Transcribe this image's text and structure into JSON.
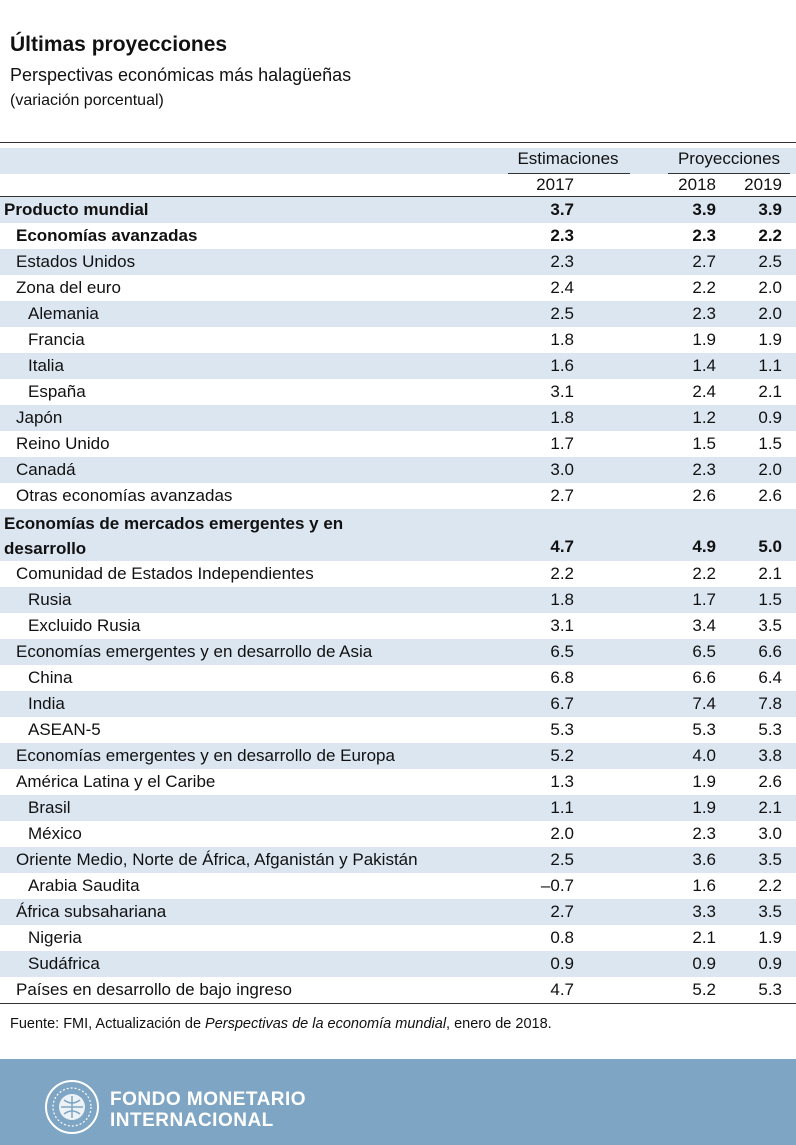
{
  "header": {
    "title": "Últimas proyecciones",
    "subtitle": "Perspectivas económicas más halagüeñas",
    "unit": "(variación porcentual)"
  },
  "table": {
    "group_headers": {
      "estimates": "Estimaciones",
      "projections": "Proyecciones"
    },
    "years": [
      "2017",
      "2018",
      "2019"
    ],
    "rows": [
      {
        "label": "Producto mundial",
        "values": [
          "3.7",
          "3.9",
          "3.9"
        ]
      },
      {
        "label": "Economías avanzadas",
        "values": [
          "2.3",
          "2.3",
          "2.2"
        ]
      },
      {
        "label": "Estados Unidos",
        "values": [
          "2.3",
          "2.7",
          "2.5"
        ]
      },
      {
        "label": "Zona del euro",
        "values": [
          "2.4",
          "2.2",
          "2.0"
        ]
      },
      {
        "label": "Alemania",
        "values": [
          "2.5",
          "2.3",
          "2.0"
        ]
      },
      {
        "label": "Francia",
        "values": [
          "1.8",
          "1.9",
          "1.9"
        ]
      },
      {
        "label": "Italia",
        "values": [
          "1.6",
          "1.4",
          "1.1"
        ]
      },
      {
        "label": "España",
        "values": [
          "3.1",
          "2.4",
          "2.1"
        ]
      },
      {
        "label": "Japón",
        "values": [
          "1.8",
          "1.2",
          "0.9"
        ]
      },
      {
        "label": "Reino Unido",
        "values": [
          "1.7",
          "1.5",
          "1.5"
        ]
      },
      {
        "label": "Canadá",
        "values": [
          "3.0",
          "2.3",
          "2.0"
        ]
      },
      {
        "label": "Otras economías avanzadas",
        "values": [
          "2.7",
          "2.6",
          "2.6"
        ]
      },
      {
        "label": "Economías de mercados emergentes y en desarrollo",
        "values": [
          "4.7",
          "4.9",
          "5.0"
        ]
      },
      {
        "label": "Comunidad de Estados Independientes",
        "values": [
          "2.2",
          "2.2",
          "2.1"
        ]
      },
      {
        "label": "Rusia",
        "values": [
          "1.8",
          "1.7",
          "1.5"
        ]
      },
      {
        "label": "Excluido Rusia",
        "values": [
          "3.1",
          "3.4",
          "3.5"
        ]
      },
      {
        "label": "Economías emergentes y en desarrollo de Asia",
        "values": [
          "6.5",
          "6.5",
          "6.6"
        ]
      },
      {
        "label": "China",
        "values": [
          "6.8",
          "6.6",
          "6.4"
        ]
      },
      {
        "label": "India",
        "values": [
          "6.7",
          "7.4",
          "7.8"
        ]
      },
      {
        "label": "ASEAN-5",
        "values": [
          "5.3",
          "5.3",
          "5.3"
        ]
      },
      {
        "label": "Economías emergentes y en desarrollo de Europa",
        "values": [
          "5.2",
          "4.0",
          "3.8"
        ]
      },
      {
        "label": "América Latina y el Caribe",
        "values": [
          "1.3",
          "1.9",
          "2.6"
        ]
      },
      {
        "label": "Brasil",
        "values": [
          "1.1",
          "1.9",
          "2.1"
        ]
      },
      {
        "label": "México",
        "values": [
          "2.0",
          "2.3",
          "3.0"
        ]
      },
      {
        "label": "Oriente Medio, Norte de África, Afganistán y Pakistán",
        "values": [
          "2.5",
          "3.6",
          "3.5"
        ]
      },
      {
        "label": "Arabia Saudita",
        "values": [
          "–0.7",
          "1.6",
          "2.2"
        ]
      },
      {
        "label": "África subsahariana",
        "values": [
          "2.7",
          "3.3",
          "3.5"
        ]
      },
      {
        "label": "Nigeria",
        "values": [
          "0.8",
          "2.1",
          "1.9"
        ]
      },
      {
        "label": "Sudáfrica",
        "values": [
          "0.9",
          "0.9",
          "0.9"
        ]
      },
      {
        "label": "Países en desarrollo de bajo ingreso",
        "values": [
          "4.7",
          "5.2",
          "5.3"
        ]
      }
    ]
  },
  "source": {
    "prefix": "Fuente: FMI, Actualización de ",
    "publication": "Perspectivas de la economía mundial",
    "suffix": ", enero de 2018."
  },
  "footer": {
    "brand_line1": "FONDO MONETARIO",
    "brand_line2": "INTERNACIONAL",
    "logo_icon": "imf-seal-icon",
    "band_color": "#7ea6c4",
    "row_shade_color": "#dce6f1"
  }
}
